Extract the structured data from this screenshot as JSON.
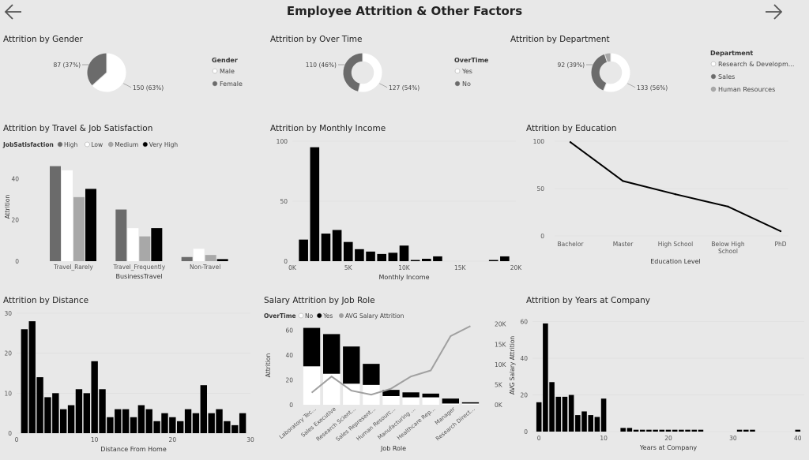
{
  "header": {
    "title": "Employee Attrition & Other Factors"
  },
  "nav": {
    "back_icon": "arrow-left-icon",
    "forward_icon": "arrow-right-icon"
  },
  "colors": {
    "black": "#000000",
    "dark": "#6b6b6b",
    "light": "#a8a8a8",
    "white": "#ffffff",
    "grey_line": "#a0a0a0",
    "bg": "#e8e8e8"
  },
  "chart_data": [
    {
      "id": "gender",
      "type": "pie",
      "title": "Attrition by Gender",
      "legend_title": "Gender",
      "labels": [
        "Male",
        "Female"
      ],
      "values": [
        150,
        87
      ],
      "data_labels": [
        "150 (63%)",
        "87 (37%)"
      ],
      "colors": [
        "#ffffff",
        "#6b6b6b"
      ],
      "legend": "right"
    },
    {
      "id": "overtime",
      "type": "pie",
      "donut": true,
      "title": "Attrition by Over Time",
      "legend_title": "OverTime",
      "labels": [
        "Yes",
        "No"
      ],
      "values": [
        127,
        110
      ],
      "data_labels": [
        "127 (54%)",
        "110 (46%)"
      ],
      "colors": [
        "#ffffff",
        "#6b6b6b"
      ],
      "legend": "right"
    },
    {
      "id": "department",
      "type": "pie",
      "donut": true,
      "title": "Attrition by Department",
      "legend_title": "Department",
      "labels": [
        "Research & Developm...",
        "Sales",
        "Human Resources"
      ],
      "values": [
        133,
        92,
        12
      ],
      "data_labels": [
        "133 (56%)",
        "92 (39%)",
        ""
      ],
      "colors": [
        "#ffffff",
        "#6b6b6b",
        "#a8a8a8"
      ],
      "legend": "right"
    },
    {
      "id": "travel",
      "type": "bar",
      "title": "Attrition by Travel & Job Satisfaction",
      "legend_title": "JobSatisfaction",
      "categories": [
        "Travel_Rarely",
        "Travel_Frequently",
        "Non-Travel"
      ],
      "series": [
        {
          "name": "High",
          "color": "#6b6b6b",
          "values": [
            46,
            25,
            2
          ]
        },
        {
          "name": "Low",
          "color": "#ffffff",
          "values": [
            44,
            16,
            6
          ]
        },
        {
          "name": "Medium",
          "color": "#a8a8a8",
          "values": [
            31,
            12,
            3
          ]
        },
        {
          "name": "Very High",
          "color": "#000000",
          "values": [
            35,
            16,
            1
          ]
        }
      ],
      "xlabel": "BusinessTravel",
      "ylabel": "Attrition",
      "ylim": [
        0,
        55
      ],
      "yticks": [
        0,
        20,
        40
      ],
      "legend": "top-left"
    },
    {
      "id": "income",
      "type": "bar",
      "title": "Attrition by Monthly Income",
      "bin_width": 1000,
      "x": [
        1000,
        2000,
        3000,
        4000,
        5000,
        6000,
        7000,
        8000,
        9000,
        10000,
        11000,
        12000,
        13000,
        18000,
        19000
      ],
      "values": [
        18,
        95,
        23,
        26,
        16,
        10,
        8,
        6,
        7,
        13,
        1,
        2,
        4,
        1,
        4
      ],
      "xlabel": "Monthly Income",
      "xlim": [
        0,
        20000
      ],
      "xticks": [
        0,
        5000,
        10000,
        15000,
        20000
      ],
      "xtick_labels": [
        "0K",
        "5K",
        "10K",
        "15K",
        "20K"
      ],
      "ylim": [
        0,
        100
      ],
      "yticks": [
        0,
        50,
        100
      ]
    },
    {
      "id": "education",
      "type": "line",
      "title": "Attrition by Education",
      "categories": [
        "Bachelor",
        "Master",
        "High School",
        "Below High School",
        "PhD"
      ],
      "category_lines": [
        [
          "Bachelor"
        ],
        [
          "Master"
        ],
        [
          "High School"
        ],
        [
          "Below High",
          "School"
        ],
        [
          "PhD"
        ]
      ],
      "values": [
        99,
        58,
        44,
        31,
        5
      ],
      "xlabel": "Education Level",
      "ylim": [
        0,
        100
      ],
      "yticks": [
        0,
        50,
        100
      ]
    },
    {
      "id": "distance",
      "type": "bar",
      "title": "Attrition by Distance",
      "x": [
        1,
        2,
        3,
        4,
        5,
        6,
        7,
        8,
        9,
        10,
        11,
        12,
        13,
        14,
        15,
        16,
        17,
        18,
        19,
        20,
        21,
        22,
        23,
        24,
        25,
        26,
        27,
        28,
        29
      ],
      "values": [
        26,
        28,
        14,
        9,
        10,
        6,
        7,
        11,
        10,
        18,
        11,
        4,
        6,
        6,
        4,
        7,
        6,
        3,
        5,
        4,
        3,
        6,
        5,
        12,
        5,
        6,
        3,
        2,
        5
      ],
      "xlabel": "Distance From Home",
      "xlim": [
        0,
        30
      ],
      "xticks": [
        0,
        10,
        20,
        30
      ],
      "ylim": [
        0,
        30
      ],
      "yticks": [
        0,
        10,
        20,
        30
      ]
    },
    {
      "id": "jobrole",
      "type": "bar",
      "stacked": true,
      "title": "Salary Attrition by Job Role",
      "legend_title": "OverTime",
      "categories": [
        "Laboratory Tec...",
        "Sales Executive",
        "Research Scient...",
        "Sales Represent...",
        "Human Resourc...",
        "Manufacturing ...",
        "Healthcare Rep...",
        "Manager",
        "Research Direct..."
      ],
      "series": [
        {
          "name": "No",
          "color": "#ffffff",
          "values": [
            31,
            25,
            17,
            16,
            7,
            6,
            6,
            1,
            1
          ]
        },
        {
          "name": "Yes",
          "color": "#000000",
          "values": [
            31,
            32,
            30,
            17,
            5,
            4,
            3,
            4,
            1
          ]
        }
      ],
      "line_series": {
        "name": "AVG Salary Attrition",
        "color": "#a0a0a0",
        "values": [
          3000,
          7000,
          3500,
          2500,
          4000,
          7000,
          8500,
          17000,
          19500
        ]
      },
      "xlabel": "Job Role",
      "ylabel": "Attrition",
      "y2label": "AVG Salary Attrition",
      "ylim": [
        0,
        70
      ],
      "yticks": [
        0,
        20,
        40,
        60
      ],
      "y2lim": [
        0,
        21500
      ],
      "y2ticks": [
        0,
        5000,
        10000,
        15000,
        20000
      ],
      "y2tick_labels": [
        "0K",
        "5K",
        "10K",
        "15K",
        "20K"
      ],
      "legend": "top-left"
    },
    {
      "id": "years",
      "type": "bar",
      "title": "Attrition by Years at Company",
      "x": [
        0,
        1,
        2,
        3,
        4,
        5,
        6,
        7,
        8,
        9,
        10,
        13,
        14,
        15,
        16,
        17,
        18,
        19,
        20,
        21,
        22,
        23,
        24,
        25,
        31,
        32,
        33,
        40
      ],
      "values": [
        16,
        59,
        27,
        19,
        19,
        20,
        9,
        11,
        9,
        8,
        18,
        2,
        2,
        1,
        1,
        1,
        1,
        1,
        1,
        1,
        1,
        1,
        1,
        1,
        1,
        1,
        1,
        1
      ],
      "xlabel": "Years at Company",
      "xlim": [
        -1,
        41
      ],
      "xticks": [
        0,
        10,
        20,
        30,
        40
      ],
      "ylim": [
        0,
        65
      ],
      "yticks": [
        0,
        20,
        40,
        60
      ]
    }
  ]
}
